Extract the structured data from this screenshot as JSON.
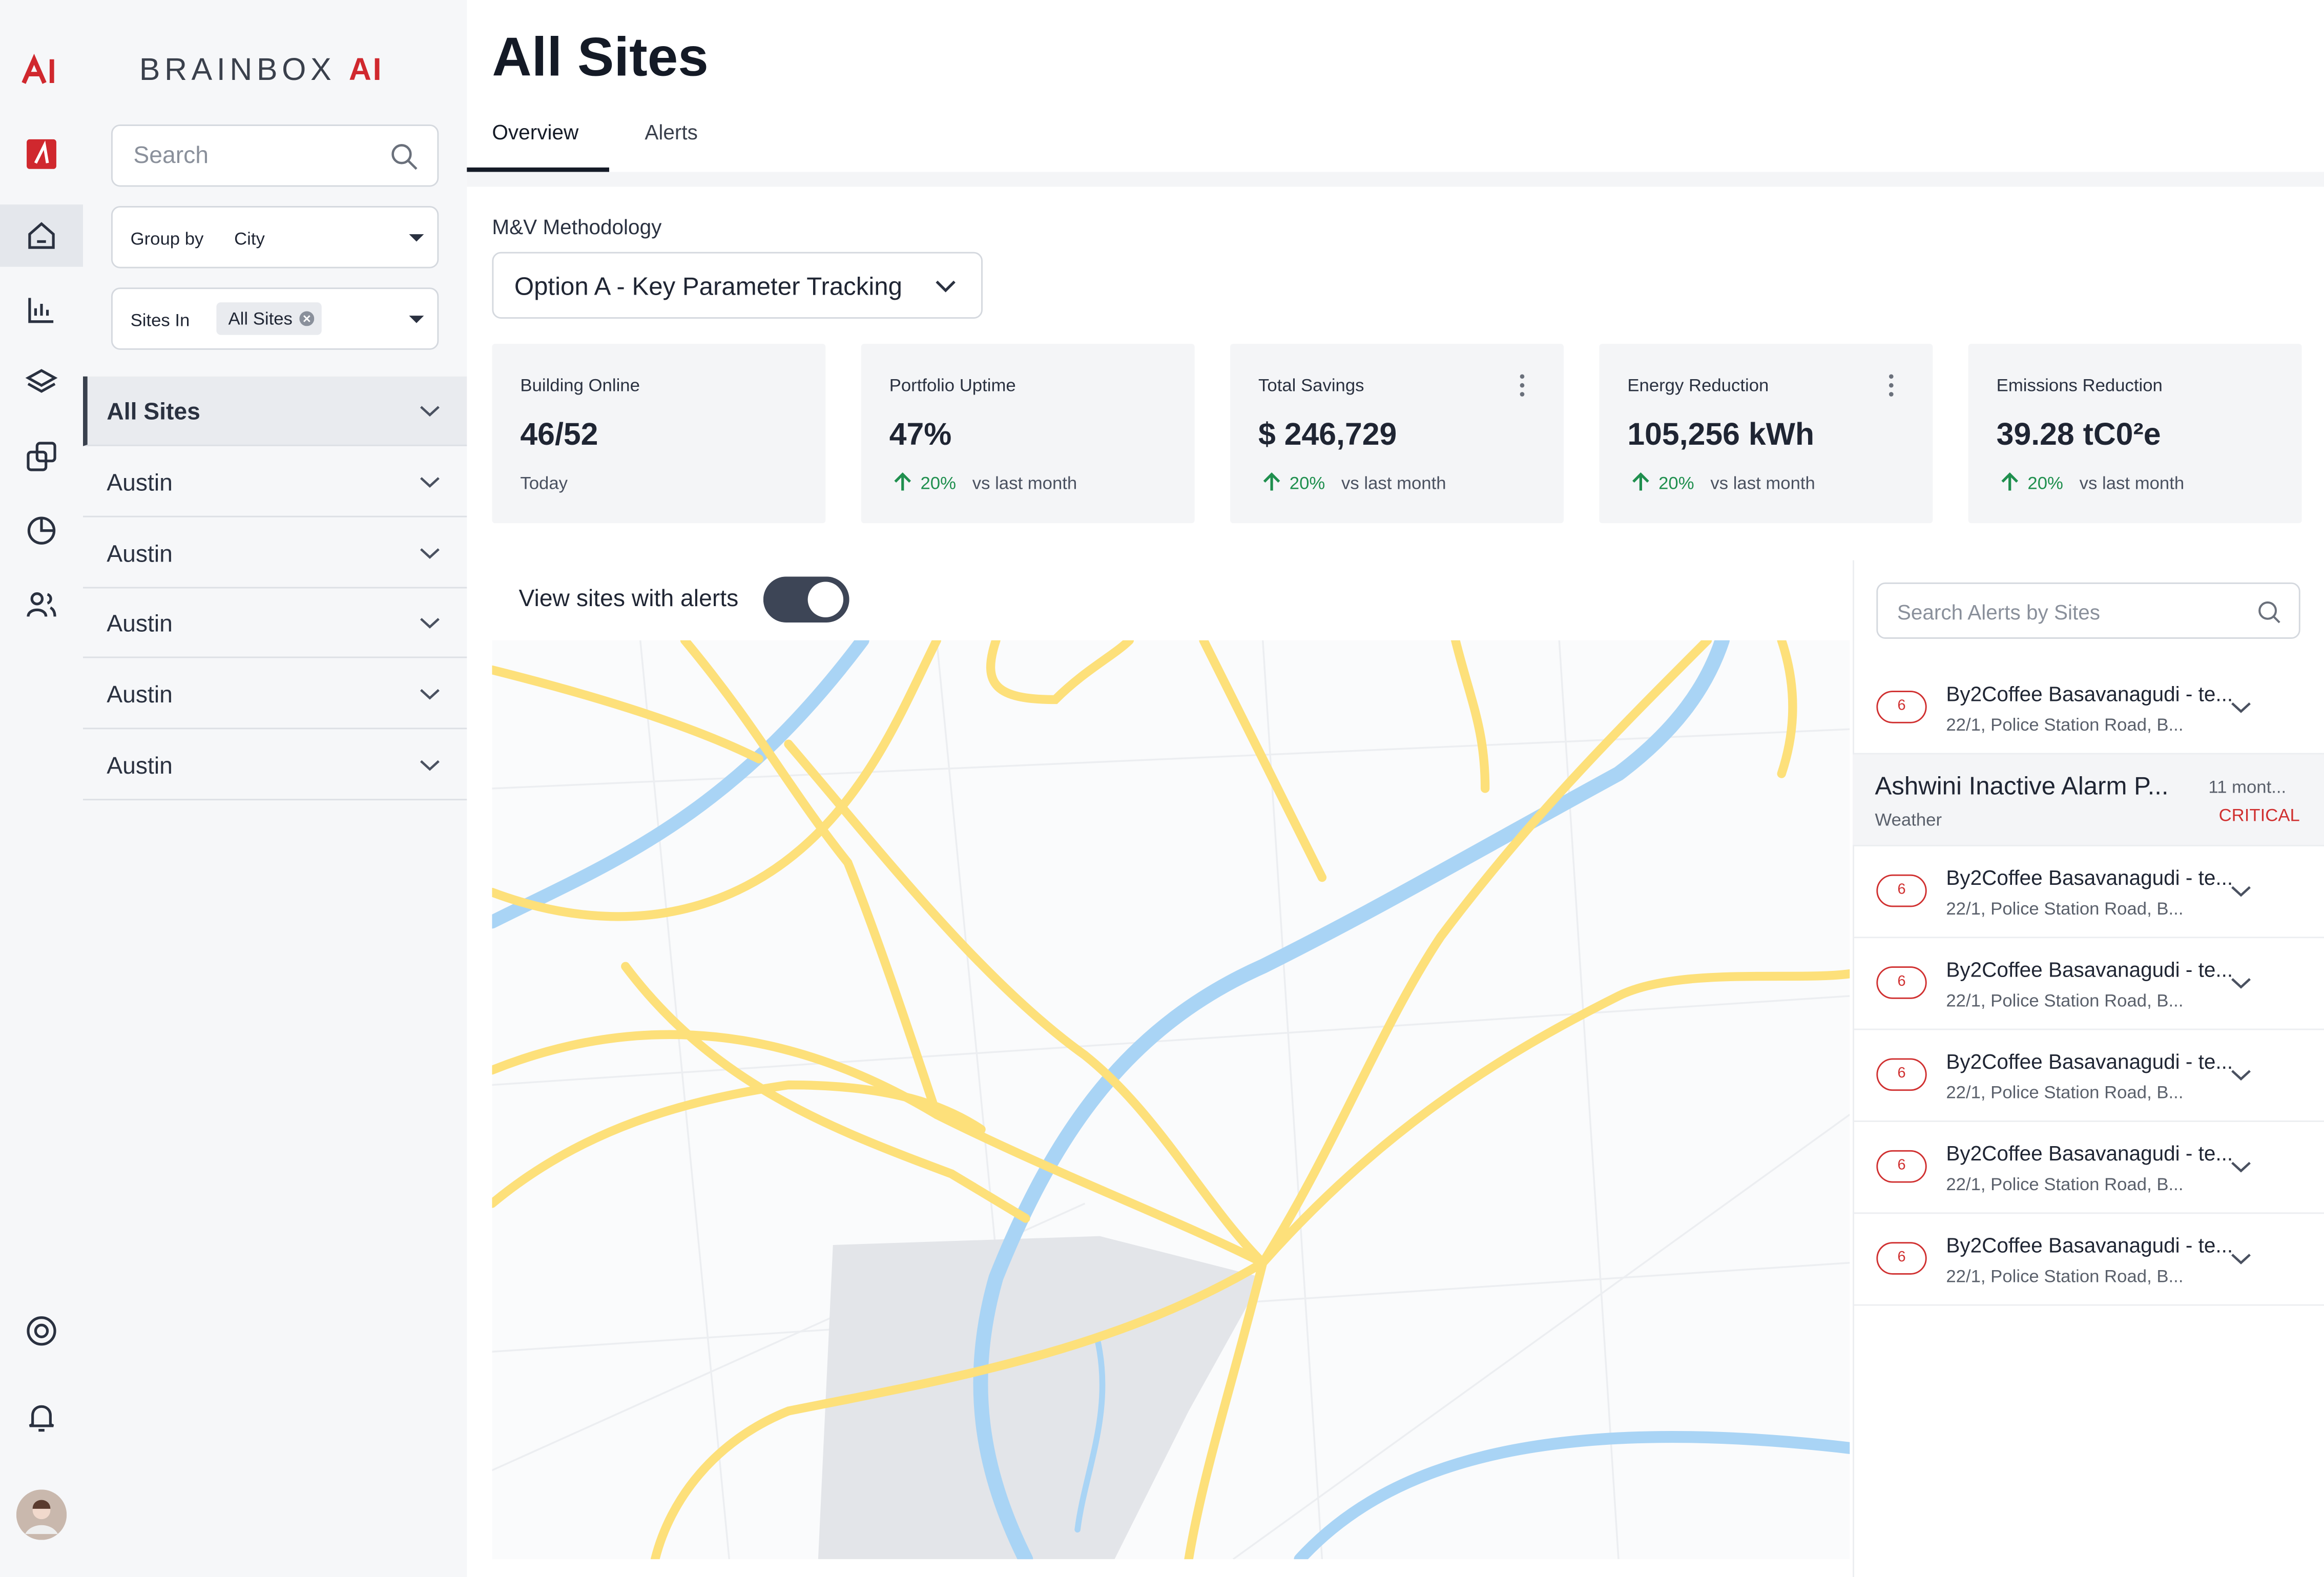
{
  "logo": {
    "brand": "BRAINBOX",
    "suffix": "AI"
  },
  "sidebar": {
    "search_placeholder": "Search",
    "group_by": {
      "label": "Group by",
      "value": "City"
    },
    "sites_in": {
      "label": "Sites In",
      "value": "All Sites"
    },
    "tree": [
      "All Sites",
      "Austin",
      "Austin",
      "Austin",
      "Austin",
      "Austin"
    ]
  },
  "header": {
    "title": "All Sites",
    "tabs": [
      "Overview",
      "Alerts"
    ]
  },
  "methodology": {
    "label": "M&V Methodology",
    "value": "Option A - Key Parameter Tracking"
  },
  "kpis": [
    {
      "label": "Building Online",
      "value": "46/52",
      "note": "Today"
    },
    {
      "label": "Portfolio Uptime",
      "value": "47%",
      "change": "20%",
      "note": "vs last month"
    },
    {
      "label": "Total Savings",
      "value": "$ 246,729",
      "change": "20%",
      "note": "vs last month"
    },
    {
      "label": "Energy Reduction",
      "value": "105,256 kWh",
      "change": "20%",
      "note": "vs last month"
    },
    {
      "label": "Emissions Reduction",
      "value": "39.28 tC0²e",
      "change": "20%",
      "note": "vs last month"
    }
  ],
  "map": {
    "toggle_label": "View sites with alerts"
  },
  "alerts": {
    "search_placeholder": "Search Alerts by Sites",
    "items": [
      {
        "count": "6",
        "title": "By2Coffee Basavanagudi - te...",
        "address": "22/1, Police Station Road, B..."
      },
      {
        "title": "Ashwini Inactive Alarm P...",
        "time": "11 mont...",
        "category": "Weather",
        "severity": "CRITICAL"
      },
      {
        "count": "6",
        "title": "By2Coffee Basavanagudi - te...",
        "address": "22/1, Police Station Road, B..."
      },
      {
        "count": "6",
        "title": "By2Coffee Basavanagudi - te...",
        "address": "22/1, Police Station Road, B..."
      },
      {
        "count": "6",
        "title": "By2Coffee Basavanagudi - te...",
        "address": "22/1, Police Station Road, B..."
      },
      {
        "count": "6",
        "title": "By2Coffee Basavanagudi - te...",
        "address": "22/1, Police Station Road, B..."
      },
      {
        "count": "6",
        "title": "By2Coffee Basavanagudi - te...",
        "address": "22/1, Police Station Road, B..."
      }
    ]
  }
}
